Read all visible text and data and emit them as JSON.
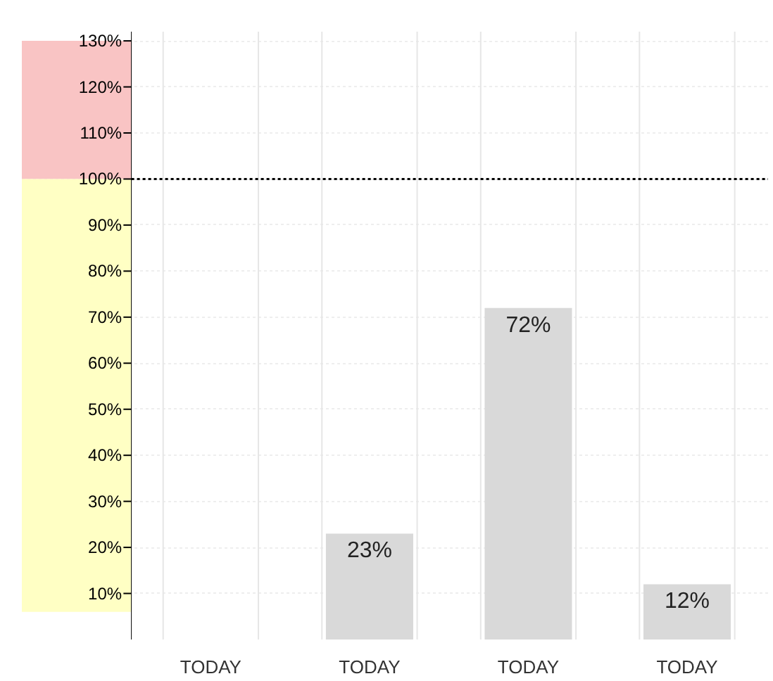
{
  "chart_data": {
    "type": "bar",
    "categories": [
      "TODAY",
      "TODAY",
      "TODAY",
      "TODAY"
    ],
    "values": [
      null,
      23,
      72,
      12
    ],
    "value_labels": [
      null,
      "23%",
      "72%",
      "12%"
    ],
    "color": "#d9d9d9",
    "ylim": [
      0,
      132
    ],
    "yticks": [
      {
        "value": 10,
        "label": "10%"
      },
      {
        "value": 20,
        "label": "20%"
      },
      {
        "value": 30,
        "label": "30%"
      },
      {
        "value": 40,
        "label": "40%"
      },
      {
        "value": 50,
        "label": "50%"
      },
      {
        "value": 60,
        "label": "60%"
      },
      {
        "value": 70,
        "label": "70%"
      },
      {
        "value": 80,
        "label": "80%"
      },
      {
        "value": 90,
        "label": "90%"
      },
      {
        "value": 100,
        "label": "100%"
      },
      {
        "value": 110,
        "label": "110%"
      },
      {
        "value": 120,
        "label": "120%"
      },
      {
        "value": 130,
        "label": "130%"
      }
    ],
    "grid": "y",
    "ref_lines": [
      {
        "axis": "y",
        "value": 100,
        "color": "#000000",
        "line_style": "dotted"
      }
    ],
    "bands": [
      {
        "axis": "y",
        "from": 100,
        "to": 130,
        "color": "#f9c4c4"
      },
      {
        "axis": "y",
        "from": 6,
        "to": 100,
        "color": "#ffffc4"
      }
    ]
  }
}
